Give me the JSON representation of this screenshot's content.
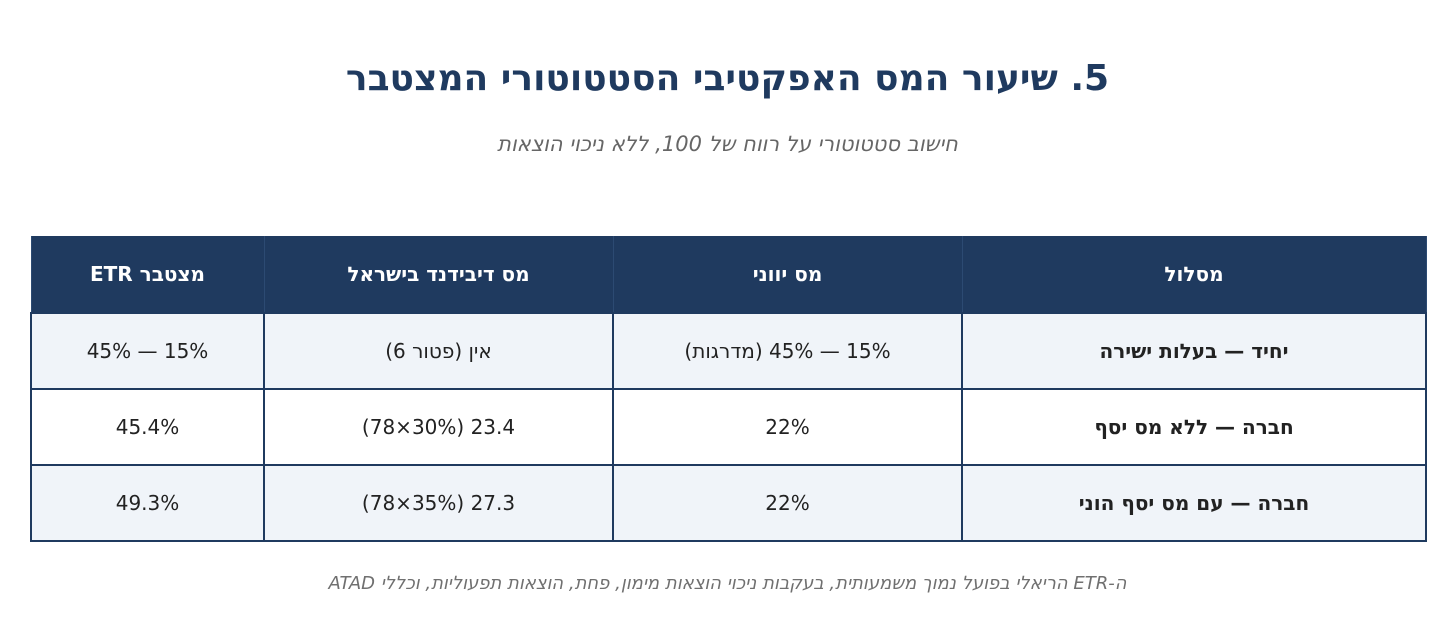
{
  "header": {
    "title": "5. שיעור המס האפקטיבי הסטטוטורי המצטבר",
    "subtitle": "חישוב סטטוטורי על רווח של 100, ללא ניכוי הוצאות"
  },
  "table": {
    "columns": [
      "מסלול",
      "מס יווני",
      "מס דיבידנד בישראל",
      "מצטבר ETR"
    ],
    "rows": [
      [
        "יחיד — בעלות ישירה",
        "15% — 45% (מדרגות)",
        "אין (פטור 6)",
        "15% — 45%"
      ],
      [
        "חברה — ללא מס יסף",
        "22%",
        "23.4 (30%×78)",
        "45.4%"
      ],
      [
        "חברה — עם מס יסף הוני",
        "22%",
        "27.3 (35%×78)",
        "49.3%"
      ]
    ]
  },
  "footnote": "ה-ETR הריאלי בפועל נמוך משמעותית, בעקבות ניכוי הוצאות מימון, פחת, הוצאות תפעוליות, וכללי ATAD",
  "colors": {
    "header_bg": "#1f3a5f",
    "title": "#1f3a5f",
    "row_alt": "#f0f4f9",
    "muted_text": "#666666"
  }
}
